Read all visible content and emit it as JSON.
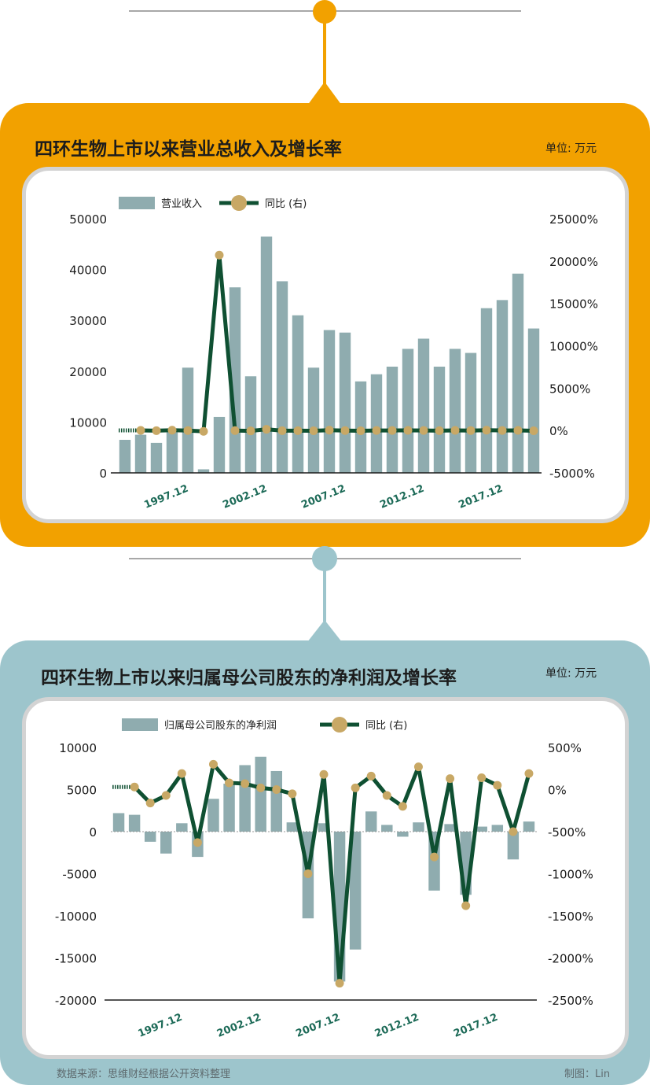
{
  "colors": {
    "orange": "#f2a100",
    "teal_panel": "#9dc5cc",
    "bar": "#8facaf",
    "line": "#0f5032",
    "dot": "#c8a865",
    "tick_green": "#1c6a57",
    "connector_dot_top": "#f2a100",
    "connector_dot_bottom": "#9dc5cc"
  },
  "panel1": {
    "title": "四环生物上市以来营业总收入及增长率",
    "unit": "单位: 万元"
  },
  "panel2": {
    "title": "四环生物上市以来归属母公司股东的净利润及增长率",
    "unit": "单位: 万元"
  },
  "footer": {
    "source": "数据来源：思维财经根据公开资料整理",
    "credit": "制图：Lin"
  },
  "chart_data": [
    {
      "type": "bar",
      "legend": [
        "营业收入",
        "同比 (右)"
      ],
      "series": [
        {
          "name": "营业收入",
          "type": "bar",
          "axis": "left",
          "values": [
            6500,
            7500,
            5900,
            8000,
            20700,
            700,
            11000,
            36500,
            19000,
            46500,
            37700,
            31000,
            20700,
            28100,
            27600,
            18000,
            19400,
            20900,
            24400,
            26400,
            20900,
            24400,
            23600,
            32400,
            34000,
            39200,
            28400
          ]
        },
        {
          "name": "同比 (右)",
          "type": "line",
          "axis": "right",
          "values": [
            null,
            15,
            -21,
            36,
            -3,
            -97,
            20700,
            -12,
            -48,
            145,
            -19,
            -18,
            -33,
            36,
            -2,
            -35,
            8,
            8,
            17,
            8,
            -21,
            17,
            -3,
            37,
            5,
            15,
            -28
          ]
        }
      ],
      "x_tick_labels": [
        "1997.12",
        "2002.12",
        "2007.12",
        "2012.12",
        "2017.12"
      ],
      "left_axis": {
        "ticks": [
          "50000",
          "40000",
          "30000",
          "20000",
          "10000",
          "0"
        ],
        "ylim": [
          0,
          50000
        ]
      },
      "right_axis": {
        "ticks": [
          "25000%",
          "20000%",
          "15000%",
          "10000%",
          "5000%",
          "0%",
          "-5000%"
        ],
        "ylim": [
          -5000,
          25000
        ]
      }
    },
    {
      "type": "bar",
      "legend": [
        "归属母公司股东的净利润",
        "同比 (右)"
      ],
      "series": [
        {
          "name": "归属母公司股东的净利润",
          "type": "bar",
          "axis": "left",
          "values": [
            2200,
            2000,
            -1200,
            -2600,
            1000,
            -3000,
            3900,
            5700,
            7900,
            8900,
            7200,
            1100,
            -10300,
            1000,
            -17800,
            -14000,
            2400,
            800,
            -600,
            1100,
            -7000,
            900,
            -7500,
            600,
            800,
            -3300,
            1200
          ]
        },
        {
          "name": "同比 (右)",
          "type": "line",
          "axis": "right",
          "values": [
            null,
            30,
            -160,
            -70,
            190,
            -630,
            300,
            80,
            70,
            20,
            0,
            -50,
            -1000,
            180,
            -2300,
            20,
            160,
            -70,
            -200,
            270,
            -800,
            130,
            -1380,
            140,
            50,
            -500,
            190
          ]
        }
      ],
      "x_tick_labels": [
        "1997.12",
        "2002.12",
        "2007.12",
        "2012.12",
        "2017.12"
      ],
      "left_axis": {
        "ticks": [
          "10000",
          "5000",
          "0",
          "-5000",
          "-10000",
          "-15000",
          "-20000"
        ],
        "ylim": [
          -20000,
          10000
        ]
      },
      "right_axis": {
        "ticks": [
          "500%",
          "0%",
          "-500%",
          "-1000%",
          "-1500%",
          "-2000%",
          "-2500%"
        ],
        "ylim": [
          -2500,
          500
        ]
      }
    }
  ]
}
